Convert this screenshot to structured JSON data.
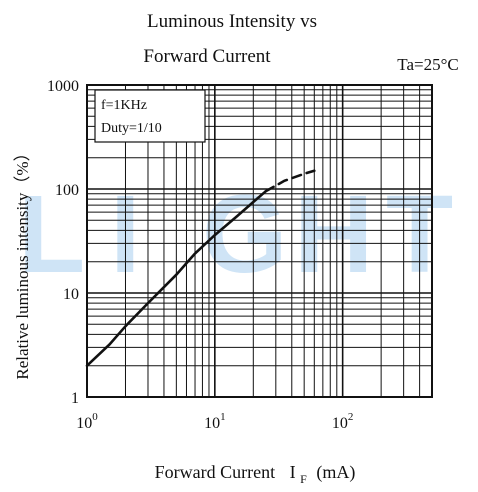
{
  "chart_data": {
    "type": "line",
    "title_line1": "Luminous Intensity vs",
    "title_line2": "Forward Current",
    "condition": "Ta=25°C",
    "xlabel_main": "Forward Current",
    "xlabel_symbol": "I",
    "xlabel_sub": "F",
    "xlabel_unit": "(mA)",
    "ylabel": "Relative luminous intensity（%）",
    "x_scale": "log",
    "y_scale": "log",
    "xlim": [
      1,
      500
    ],
    "ylim": [
      1,
      1000
    ],
    "grid": true,
    "x_ticks": [
      {
        "value": 1,
        "base": "10",
        "exp": "0"
      },
      {
        "value": 10,
        "base": "10",
        "exp": "1"
      },
      {
        "value": 100,
        "base": "10",
        "exp": "2"
      }
    ],
    "y_ticks": [
      {
        "value": 1,
        "label": "1"
      },
      {
        "value": 10,
        "label": "10"
      },
      {
        "value": 100,
        "label": "100"
      },
      {
        "value": 1000,
        "label": "1000"
      }
    ],
    "annotation": [
      "f=1KHz",
      "Duty=1/10"
    ],
    "series": [
      {
        "style": "solid",
        "x": [
          1,
          1.5,
          2,
          3,
          5,
          7,
          10,
          15,
          20,
          25
        ],
        "y": [
          2,
          3.2,
          4.8,
          8,
          15,
          24,
          36,
          55,
          75,
          95
        ]
      },
      {
        "style": "dashed",
        "x": [
          25,
          35,
          50,
          60
        ],
        "y": [
          95,
          120,
          140,
          150
        ]
      }
    ],
    "watermark": "LIGHT"
  }
}
